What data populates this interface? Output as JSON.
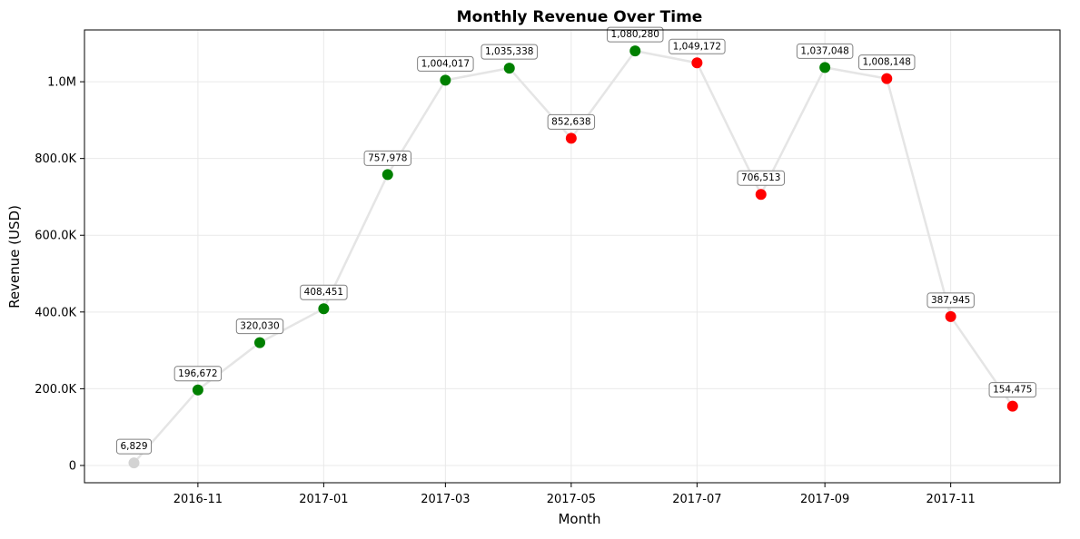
{
  "chart_data": {
    "type": "line",
    "title": "Monthly Revenue Over Time",
    "xlabel": "Month",
    "ylabel": "Revenue (USD)",
    "x": [
      "2016-10",
      "2016-11",
      "2016-12",
      "2017-01",
      "2017-02",
      "2017-03",
      "2017-04",
      "2017-05",
      "2017-06",
      "2017-07",
      "2017-08",
      "2017-09",
      "2017-10",
      "2017-11",
      "2017-12"
    ],
    "values": [
      6829,
      196672,
      320030,
      408451,
      757978,
      1004017,
      1035338,
      852638,
      1080280,
      1049172,
      706513,
      1037048,
      1008148,
      387945,
      154475
    ],
    "data_labels": [
      "6,829",
      "196,672",
      "320,030",
      "408,451",
      "757,978",
      "1,004,017",
      "1,035,338",
      "852,638",
      "1,080,280",
      "1,049,172",
      "706,513",
      "1,037,048",
      "1,008,148",
      "387,945",
      "154,475"
    ],
    "point_status": [
      "neutral",
      "up",
      "up",
      "up",
      "up",
      "up",
      "up",
      "down",
      "up",
      "down",
      "down",
      "up",
      "down",
      "down",
      "down"
    ],
    "colors": {
      "up": "#008000",
      "down": "#ff0000",
      "neutral": "#d3d3d3",
      "line": "#e5e5e5",
      "grid": "#e9e9e9"
    },
    "x_ticks": [
      "2016-11",
      "2017-01",
      "2017-03",
      "2017-05",
      "2017-07",
      "2017-09",
      "2017-11"
    ],
    "y_ticks": [
      {
        "value": 0,
        "label": "0"
      },
      {
        "value": 200000,
        "label": "200.0K"
      },
      {
        "value": 400000,
        "label": "400.0K"
      },
      {
        "value": 600000,
        "label": "600.0K"
      },
      {
        "value": 800000,
        "label": "800.0K"
      },
      {
        "value": 1000000,
        "label": "1.0M"
      }
    ],
    "ylim": [
      -45000,
      1135000
    ],
    "xlim": [
      "2016-09-07",
      "2017-12-24"
    ],
    "grid": true
  }
}
